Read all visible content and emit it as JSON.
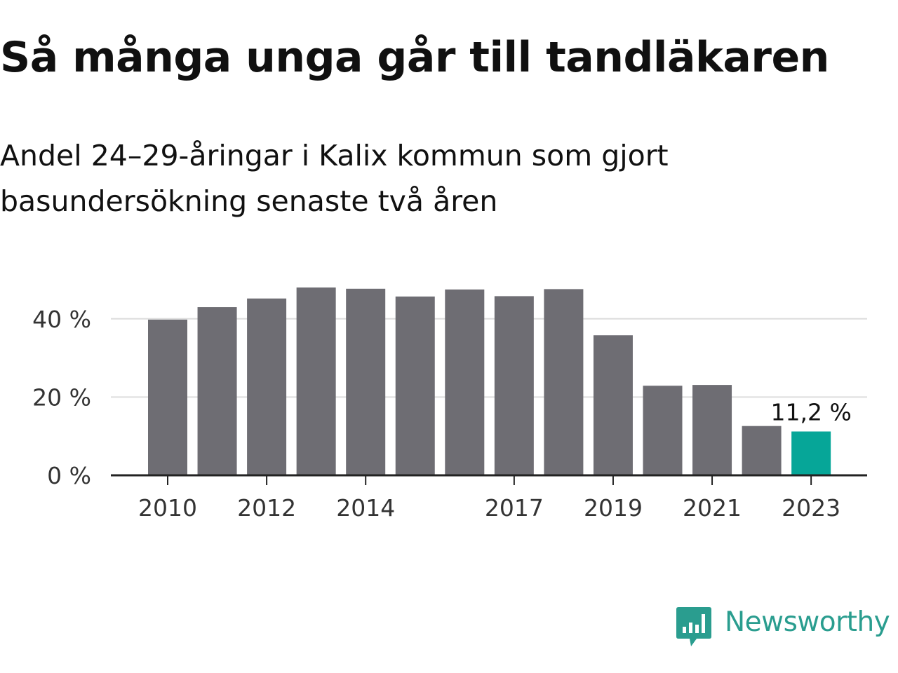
{
  "header": {
    "title": "Så många unga går till tandläkaren",
    "subtitle": "Andel 24–29-åringar i Kalix kommun som gjort basundersökning senaste två åren"
  },
  "colors": {
    "bar": "#6e6d73",
    "highlight": "#06a698",
    "grid": "#dddddd",
    "axis": "#222222",
    "brand": "#2a9d8f"
  },
  "brand": {
    "name": "Newsworthy",
    "icon": "bar-chart-speech-bubble-icon"
  },
  "chart_data": {
    "type": "bar",
    "categories": [
      "2010",
      "2011",
      "2012",
      "2013",
      "2014",
      "2015",
      "2016",
      "2017",
      "2018",
      "2019",
      "2020",
      "2021",
      "2022",
      "2023"
    ],
    "values": [
      39.8,
      43.0,
      45.2,
      48.0,
      47.7,
      45.7,
      47.5,
      45.8,
      47.6,
      35.8,
      22.9,
      23.1,
      12.6,
      11.2
    ],
    "x_tick_labels": [
      "2010",
      "2012",
      "2014",
      "2017",
      "2019",
      "2021",
      "2023"
    ],
    "y_ticks": [
      0,
      20,
      40
    ],
    "y_tick_labels": [
      "0 %",
      "20 %",
      "40 %"
    ],
    "ylim": [
      0,
      48
    ],
    "highlight_index": 13,
    "highlight_label": "11,2 %",
    "grid": true
  }
}
